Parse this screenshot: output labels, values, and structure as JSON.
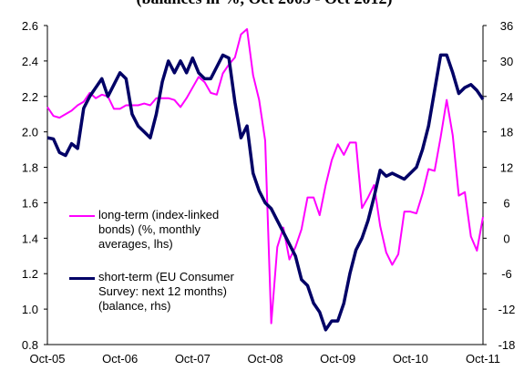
{
  "chart_data": {
    "type": "line",
    "title": "(balances in %, Oct 2005 - Oct 2012)",
    "categories": [
      "Oct-05",
      null,
      null,
      null,
      null,
      null,
      null,
      null,
      null,
      null,
      null,
      null,
      "Oct-06",
      null,
      null,
      null,
      null,
      null,
      null,
      null,
      null,
      null,
      null,
      null,
      "Oct-07",
      null,
      null,
      null,
      null,
      null,
      null,
      null,
      null,
      null,
      null,
      null,
      "Oct-08",
      null,
      null,
      null,
      null,
      null,
      null,
      null,
      null,
      null,
      null,
      null,
      "Oct-09",
      null,
      null,
      null,
      null,
      null,
      null,
      null,
      null,
      null,
      null,
      null,
      "Oct-10",
      null,
      null,
      null,
      null,
      null,
      null,
      null,
      null,
      null,
      null,
      null,
      "Oct-11"
    ],
    "series": [
      {
        "name": "long-term (index-linked bonds) (%, monthly averages, lhs)",
        "color": "#ff00ff",
        "axis": "y",
        "values": [
          2.14,
          2.09,
          2.08,
          2.1,
          2.12,
          2.15,
          2.17,
          2.22,
          2.19,
          2.21,
          2.2,
          2.13,
          2.13,
          2.15,
          2.15,
          2.15,
          2.16,
          2.15,
          2.19,
          2.19,
          2.19,
          2.18,
          2.14,
          2.19,
          2.25,
          2.31,
          2.28,
          2.22,
          2.21,
          2.33,
          2.38,
          2.42,
          2.55,
          2.58,
          2.32,
          2.18,
          1.95,
          0.92,
          1.35,
          1.46,
          1.28,
          1.35,
          1.45,
          1.63,
          1.63,
          1.53,
          1.7,
          1.84,
          1.93,
          1.87,
          1.94,
          1.94,
          1.57,
          1.63,
          1.7,
          1.47,
          1.32,
          1.25,
          1.31,
          1.55,
          1.55,
          1.54,
          1.65,
          1.79,
          1.78,
          1.97,
          2.18,
          1.98,
          1.64,
          1.66,
          1.41,
          1.33,
          1.52
        ]
      },
      {
        "name": "short-term (EU Consumer Survey: next 12 months) (balance, rhs)",
        "color": "#000066",
        "axis": "y2",
        "values": [
          17,
          16.8,
          14.5,
          14,
          16,
          15.2,
          22,
          24,
          25.5,
          27,
          24,
          26,
          28,
          27,
          21,
          19,
          18,
          17,
          21,
          26.5,
          30,
          28,
          30,
          28,
          30.5,
          28,
          27,
          27,
          29,
          31,
          30.5,
          23,
          17,
          19,
          11,
          8,
          6,
          5,
          3,
          1,
          -1,
          -3,
          -7,
          -8,
          -11,
          -12.5,
          -15.5,
          -14,
          -14,
          -11,
          -6,
          -2,
          0,
          3,
          7,
          11.5,
          10.5,
          11,
          10.5,
          10,
          11,
          12,
          15,
          19,
          25,
          31,
          31,
          28,
          24.5,
          25.5,
          26,
          25,
          23.5
        ]
      }
    ],
    "ylim": [
      0.8,
      2.6
    ],
    "yticks": [
      {
        "value": 0.8,
        "label": "0.8"
      },
      {
        "value": 1.0,
        "label": "1.0"
      },
      {
        "value": 1.2,
        "label": "1.2"
      },
      {
        "value": 1.4,
        "label": "1.4"
      },
      {
        "value": 1.6,
        "label": "1.6"
      },
      {
        "value": 1.8,
        "label": "1.8"
      },
      {
        "value": 2.0,
        "label": "2.0"
      },
      {
        "value": 2.2,
        "label": "2.2"
      },
      {
        "value": 2.4,
        "label": "2.4"
      },
      {
        "value": 2.6,
        "label": "2.6"
      }
    ],
    "y2lim": [
      -18,
      36
    ],
    "y2ticks": [
      -18,
      -12,
      -6,
      0,
      6,
      12,
      18,
      24,
      30,
      36
    ],
    "grid": false,
    "legend": "lower left"
  }
}
